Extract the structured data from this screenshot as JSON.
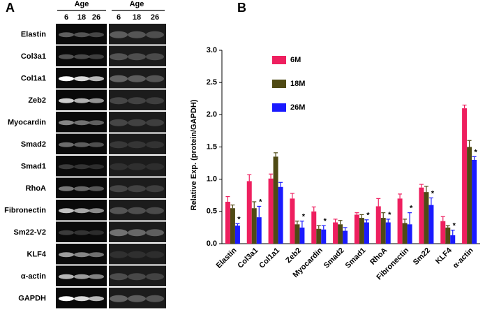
{
  "panel_a": {
    "label": "A",
    "header": "Age",
    "ages": [
      "6",
      "18",
      "26"
    ],
    "rows": [
      "Elastin",
      "Col3a1",
      "Col1a1",
      "Zeb2",
      "Myocardin",
      "Smad2",
      "Smad1",
      "RhoA",
      "Fibronectin",
      "Sm22-V2",
      "KLF4",
      "α-actin",
      "GAPDH"
    ]
  },
  "chart_data": {
    "type": "bar",
    "panel_label": "B",
    "y_label": "Relative Exp. (protein/GAPDH)",
    "categories": [
      "Elastin",
      "Col3a1",
      "Col1a1",
      "Zeb2",
      "Myocardin",
      "Smad2",
      "Smad1",
      "RhoA",
      "Fibronectin",
      "Sm22",
      "KLF4",
      "α-actin"
    ],
    "series": [
      {
        "name": "6M",
        "color": "#ee1f5f",
        "values": [
          0.65,
          0.97,
          1.01,
          0.7,
          0.5,
          0.33,
          0.45,
          0.58,
          0.7,
          0.87,
          0.35,
          2.1
        ],
        "errors": [
          0.08,
          0.1,
          0.07,
          0.08,
          0.07,
          0.05,
          0.03,
          0.12,
          0.07,
          0.05,
          0.07,
          0.05
        ]
      },
      {
        "name": "18M",
        "color": "#4f4a14",
        "values": [
          0.55,
          0.55,
          1.35,
          0.3,
          0.23,
          0.3,
          0.4,
          0.4,
          0.32,
          0.8,
          0.25,
          1.5
        ],
        "errors": [
          0.05,
          0.1,
          0.06,
          0.05,
          0.05,
          0.06,
          0.05,
          0.08,
          0.06,
          0.09,
          0.03,
          0.1
        ]
      },
      {
        "name": "26M",
        "color": "#1a1aff",
        "values": [
          0.28,
          0.41,
          0.88,
          0.25,
          0.22,
          0.2,
          0.33,
          0.33,
          0.3,
          0.6,
          0.13,
          1.3
        ],
        "errors": [
          0.03,
          0.17,
          0.07,
          0.1,
          0.06,
          0.05,
          0.04,
          0.05,
          0.18,
          0.11,
          0.08,
          0.05
        ],
        "significance": [
          "*",
          "*",
          null,
          "*",
          "*",
          null,
          "*",
          "*",
          "*",
          "*",
          "*",
          "*"
        ]
      }
    ],
    "ylim": [
      0,
      3
    ],
    "yticks": [
      {
        "value": 0,
        "label": "0.0"
      },
      {
        "value": 0.5,
        "label": "0.5"
      },
      {
        "value": 1,
        "label": "1.0"
      },
      {
        "value": 1.5,
        "label": "1.5"
      },
      {
        "value": 2,
        "label": "2.0"
      },
      {
        "value": 2.5,
        "label": "2.5"
      },
      {
        "value": 3,
        "label": "3.0"
      }
    ]
  }
}
